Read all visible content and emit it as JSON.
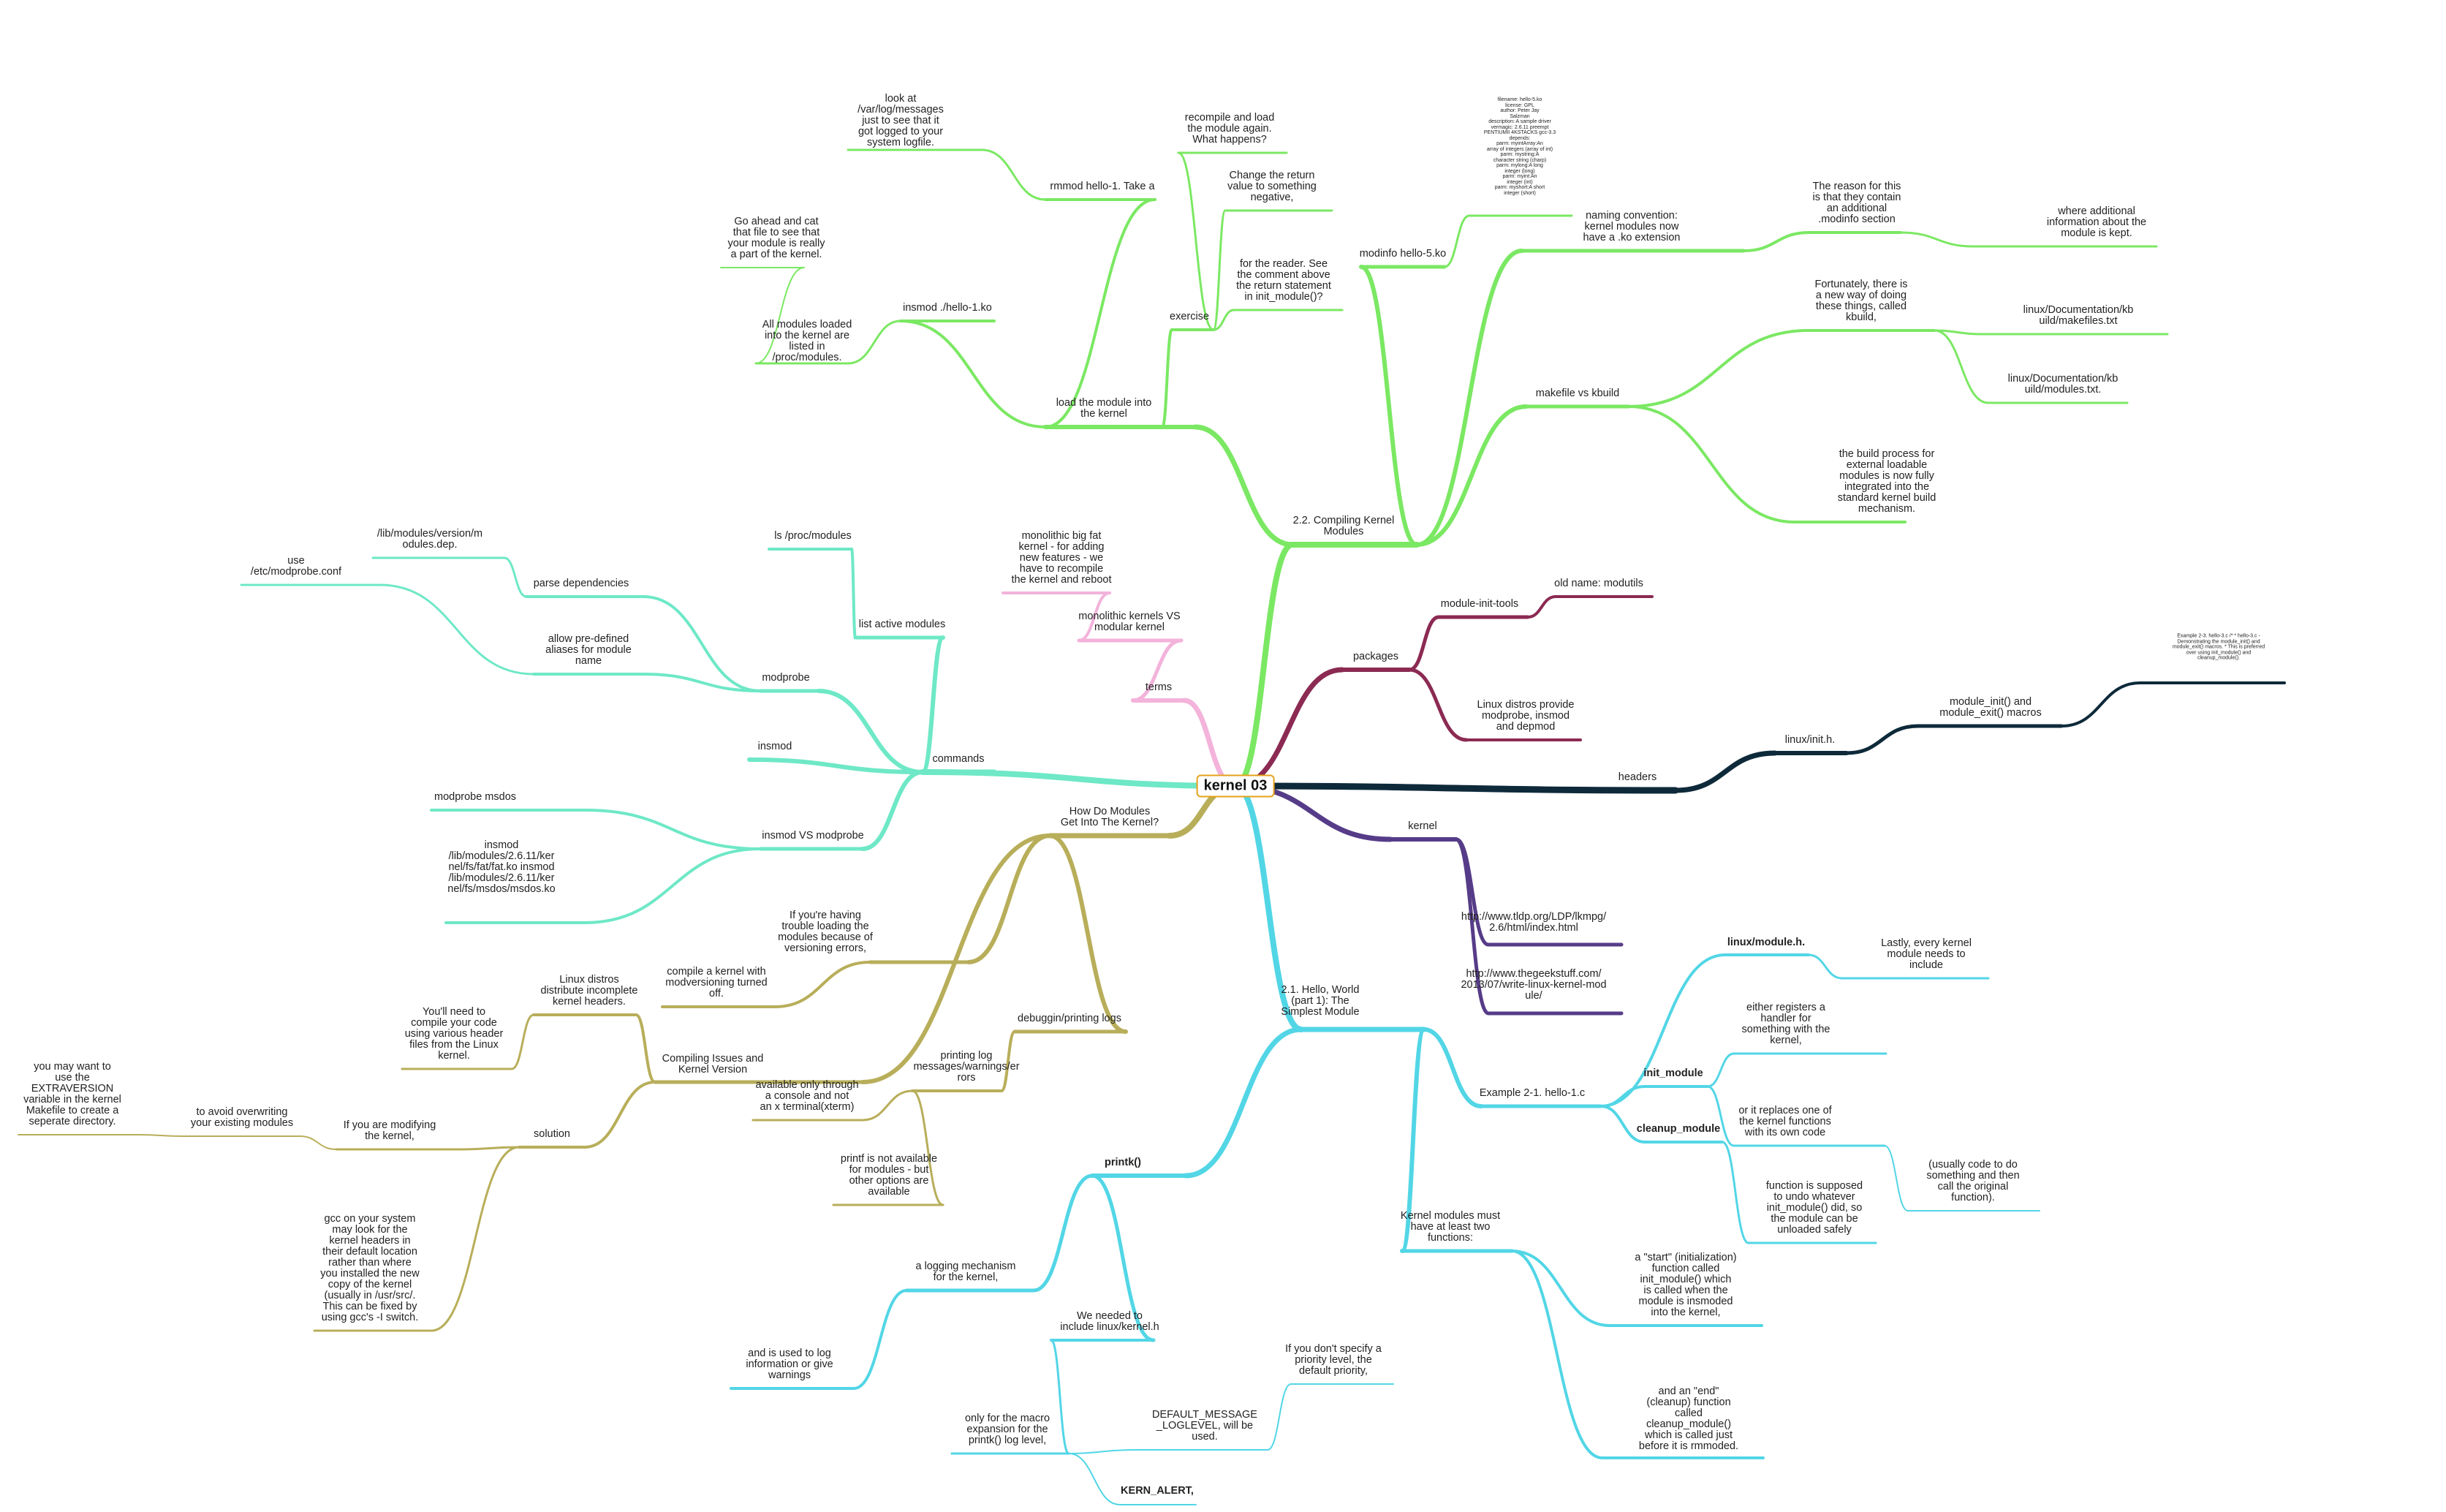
{
  "root": "kernel 03",
  "colors": {
    "compiling": "#7be863",
    "packages": "#8b2a52",
    "headers": "#0e2a3a",
    "kernel": "#563c88",
    "hello": "#52d6e6",
    "how_do": "#b8ae5a",
    "commands": "#6ee8c6",
    "terms": "#f3b3db"
  },
  "nodes": {
    "n_compiling": "2.2.  Compiling  Kernel\nModules",
    "n_load": "load  the  module  into\nthe  kernel",
    "n_rmmod": "rmmod hello-1. Take a",
    "n_lookat": "look  at\n/var/log/messages\njust  to  see  that  it\ngot  logged  to  your\nsystem  logfile.",
    "n_insmod_h": "insmod ./hello-1.ko",
    "n_allmod": "All  modules  loaded\ninto  the  kernel  are\nlisted  in\n/proc/modules.",
    "n_goahead": "Go  ahead  and  cat\nthat  file  to  see  that\nyour  module  is  really\na  part  of  the  kernel.",
    "n_exercise": "exercise",
    "n_recompile": "recompile  and  load\nthe  module  again.\nWhat  happens?",
    "n_change": "Change  the  return\nvalue  to  something\nnegative,",
    "n_reader": "for  the  reader.  See\nthe  comment  above\nthe  return  statement\nin  init_module()?",
    "n_modinfo": "modinfo hello-5.ko",
    "n_modinfo_out": "filename:       hello-5.ko\nlicense:        GPL\nauthor:         Peter Jay\nSalzman\ndescription:    A sample driver\nvermagic:       2.6.11 preempt\nPENTIUMII 4KSTACKS gcc-3.3\ndepends:\nparm:           myintArray:An\narray of integers (array of int)\nparm:           mystring:A\ncharacter string (charp)\nparm:           mylong:A long\ninteger (long)\nparm:           myint:An\ninteger (int)\nparm:           myshort:A short\ninteger (short)",
    "n_naming": "naming  convention:\nkernel  modules  now\nhave  a  .ko  extension",
    "n_reason": "The  reason  for  this\nis  that  they  contain\nan  additional\n.modinfo  section",
    "n_where": "where  additional\ninformation  about  the\nmodule  is  kept.",
    "n_makefile": "makefile vs kbuild",
    "n_fortunately": "Fortunately,  there  is\na  new  way  of  doing\nthese  things,  called\nkbuild,",
    "n_kb1": "linux/Documentation/kb\nuild/makefiles.txt",
    "n_kb2": "linux/Documentation/kb\nuild/modules.txt.",
    "n_buildproc": "the  build  process  for\nexternal  loadable\nmodules  is  now  fully\nintegrated  into  the\nstandard  kernel  build\nmechanism.",
    "n_packages": "packages",
    "n_mit": "module-init-tools",
    "n_oldname": "old name: modutils",
    "n_distros": "Linux  distros  provide\nmodprobe,  insmod\nand  depmod",
    "n_headers": "headers",
    "n_init_h": "linux/init.h.",
    "n_modinit": "module_init()  and\nmodule_exit()  macros",
    "n_example": "Example 2-3. hello-3.c /*  *  hello-3.c -\nDemonstrating the module_init() and\nmodule_exit() macros.  *  This is preferred\nover using init_module() and\ncleanup_module().",
    "n_kernel": "kernel",
    "n_url1": "http://www.tldp.org/LDP/lkmpg/\n2.6/html/index.html",
    "n_url2": "http://www.thegeekstuff.com/\n2013/07/write-linux-kernel-mod\nule/",
    "n_hello": "2.1.  Hello,  World\n(part  1):  The\nSimplest  Module",
    "n_example21": "Example 2-1. hello-1.c",
    "n_modh": "linux/module.h.",
    "n_lastly": "Lastly,  every  kernel\nmodule  needs  to\ninclude",
    "n_initmod": "init_module",
    "n_either": "either  registers  a\nhandler  for\nsomething  with  the\nkernel,",
    "n_replaces": "or  it  replaces  one  of\nthe  kernel  functions\nwith  its  own  code",
    "n_usually": "(usually  code  to  do\nsomething  and  then\ncall  the  original\nfunction).",
    "n_cleanup": "cleanup_module",
    "n_undo": "function  is  supposed\nto  undo  whatever\ninit_module()  did,  so\nthe  module  can  be\nunloaded  safely",
    "n_musthave": "Kernel  modules  must\nhave  at  least  two\nfunctions:",
    "n_start": "a  \"start\"  (initialization)\nfunction  called\ninit_module()  which\nis  called  when  the\nmodule  is  insmoded\ninto  the  kernel,",
    "n_end": "and  an  \"end\"\n(cleanup)  function\ncalled\ncleanup_module()\nwhich  is  called  just\nbefore  it  is  rmmoded.",
    "n_printk": "printk()",
    "n_logging": "a  logging  mechanism\nfor  the  kernel,",
    "n_andused": "and  is  used  to  log\ninformation  or  give\nwarnings",
    "n_weneed": "We  needed  to\ninclude  linux/kernel.h",
    "n_onlyfor": "only  for  the  macro\nexpansion  for  the\nprintk()  log  level,",
    "n_defmsg": "DEFAULT_MESSAGE\n_LOGLEVEL,  will  be\nused.",
    "n_ifyou": "If  you  don't  specify  a\npriority  level,  the\ndefault  priority,",
    "n_alert": "KERN_ALERT,",
    "n_howdo": "How  Do  Modules\nGet  Into  The  Kernel?",
    "n_compilek": "compile  a  kernel  with\nmodversioning  turned\noff.",
    "n_ifyourehaving": "If  you're  having\ntrouble  loading  the\nmodules  because  of\nversioning  errors,",
    "n_compiss": "Compiling  Issues  and\nKernel  Version",
    "n_distdist": "Linux  distros\ndistribute  incomplete\nkernel  headers.",
    "n_youll": "You'll  need  to\ncompile  your  code\nusing  various  header\nfiles  from  the  Linux\nkernel.",
    "n_solution": "solution",
    "n_ifmod": "If  you  are  modifying\nthe  kernel,",
    "n_avoid": "to  avoid  overwriting\nyour  existing  modules",
    "n_maywant": "you  may  want  to\nuse  the\nEXTRAVERSION\nvariable  in  the  kernel\nMakefile  to  create  a\nseperate  directory.",
    "n_gcc": "gcc  on  your  system\nmay  look  for  the\nkernel  headers  in\ntheir  default  location\nrather  than  where\nyou  installed  the  new\ncopy  of  the  kernel\n(usually  in  /usr/src/.\nThis  can  be  fixed  by\nusing  gcc's  -I  switch.",
    "n_debug": "debuggin/printing logs",
    "n_printlog": "printing  log\nmessages/warnings/er\nrors",
    "n_avail": "available  only  through\na  console  and  not\nan  x  terminal(xterm)",
    "n_printf": "printf  is  not  available\nfor  modules  -  but\nother  options  are\navailable",
    "n_commands": "commands",
    "n_listactive": "list active modules",
    "n_lsproc": "ls /proc/modules",
    "n_modprobe": "modprobe",
    "n_parsedep": "parse dependencies",
    "n_libmod": "/lib/modules/version/m\nodules.dep.",
    "n_allow": "allow  pre-defined\naliases  for  module\nname",
    "n_use": "use\n/etc/modprobe.conf",
    "n_insmod": "insmod",
    "n_insvs": "insmod VS modprobe",
    "n_modmsdos": "modprobe msdos",
    "n_insmodlong": "insmod\n/lib/modules/2.6.11/ker\nnel/fs/fat/fat.ko insmod\n/lib/modules/2.6.11/ker\nnel/fs/msdos/msdos.ko",
    "n_terms": "terms",
    "n_monovs": "monolithic  kernels  VS\nmodular  kernel",
    "n_monofat": "monolithic  big  fat\nkernel  -  for  adding\nnew  features  -  we\nhave  to  recompile\nthe  kernel  and  reboot"
  }
}
